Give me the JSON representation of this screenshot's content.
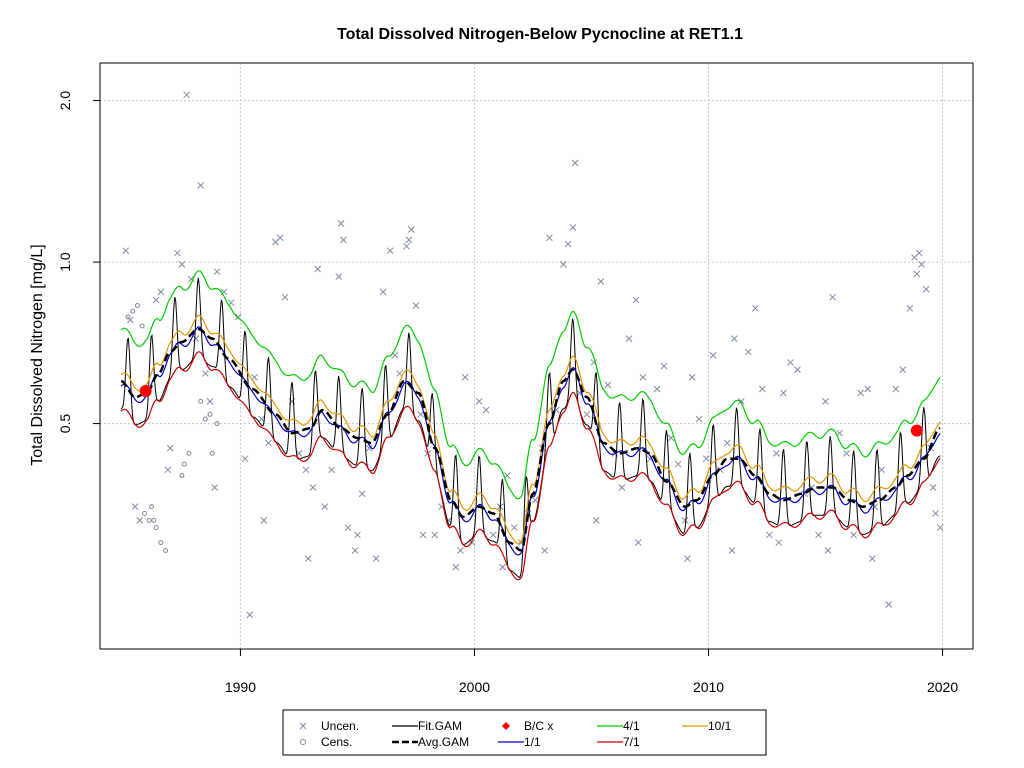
{
  "chart_data": {
    "type": "line",
    "title": "Total Dissolved Nitrogen-Below Pycnocline at RET1.1",
    "xlabel": "",
    "ylabel": "Total Dissolved Nitrogen [mg/L]",
    "y_scale": "log",
    "xlim": [
      1984.0,
      2021.3
    ],
    "ylim": [
      0.19,
      2.35
    ],
    "x_ticks": [
      1990,
      2000,
      2010,
      2020
    ],
    "x_tick_labels": [
      "1990",
      "2000",
      "2010",
      "2020"
    ],
    "y_ticks": [
      0.5,
      1.0,
      2.0
    ],
    "y_tick_labels": [
      "0.5",
      "1.0",
      "2.0"
    ],
    "grid": true,
    "legend_position": "bottom",
    "legend": [
      {
        "key": "uncen",
        "label": "Uncen.",
        "symbol": "x",
        "color": "#7f8ca6"
      },
      {
        "key": "cens",
        "label": "Cens.",
        "symbol": "circle",
        "color": "#7f8ca6"
      },
      {
        "key": "fit",
        "label": "Fit.GAM",
        "symbol": "line",
        "color": "#000000"
      },
      {
        "key": "avg",
        "label": "Avg.GAM",
        "symbol": "dashed",
        "color": "#000000"
      },
      {
        "key": "bc",
        "label": "B/C x",
        "symbol": "diamond",
        "color": "#ff0000"
      },
      {
        "key": "s1",
        "label": "1/1",
        "symbol": "line",
        "color": "#0000cc"
      },
      {
        "key": "s4",
        "label": "4/1",
        "symbol": "line",
        "color": "#00cc00"
      },
      {
        "key": "s7",
        "label": "7/1",
        "symbol": "line",
        "color": "#cc0000"
      },
      {
        "key": "s10",
        "label": "10/1",
        "symbol": "line",
        "color": "#e69500"
      }
    ],
    "avg_gam": {
      "x": [
        1984.9,
        1985.5,
        1986.0,
        1986.5,
        1987.0,
        1987.5,
        1988.2,
        1988.8,
        1989.5,
        1990.5,
        1991.5,
        1992.2,
        1993.0,
        1993.5,
        1994.3,
        1995.0,
        1995.6,
        1996.3,
        1997.0,
        1997.6,
        1998.3,
        1999.0,
        1999.5,
        2000.2,
        2000.8,
        2001.5,
        2002.0,
        2002.5,
        2003.2,
        2003.8,
        2004.2,
        2004.8,
        2005.5,
        2006.2,
        2007.0,
        2007.5,
        2008.2,
        2009.0,
        2009.5,
        2010.2,
        2010.8,
        2011.3,
        2012.0,
        2012.6,
        2013.2,
        2014.0,
        2014.6,
        2015.3,
        2016.0,
        2016.6,
        2017.3,
        2018.0,
        2018.5,
        2019.2,
        2019.9
      ],
      "values": [
        0.6,
        0.56,
        0.57,
        0.62,
        0.68,
        0.71,
        0.75,
        0.72,
        0.66,
        0.58,
        0.52,
        0.48,
        0.49,
        0.53,
        0.49,
        0.47,
        0.46,
        0.52,
        0.6,
        0.57,
        0.45,
        0.36,
        0.335,
        0.35,
        0.34,
        0.3,
        0.29,
        0.37,
        0.5,
        0.6,
        0.63,
        0.56,
        0.46,
        0.44,
        0.45,
        0.44,
        0.39,
        0.35,
        0.36,
        0.4,
        0.43,
        0.43,
        0.4,
        0.37,
        0.36,
        0.37,
        0.38,
        0.38,
        0.36,
        0.35,
        0.36,
        0.38,
        0.4,
        0.43,
        0.49
      ]
    },
    "fit_gam_amplitude": 0.34,
    "series": [
      {
        "name": "4/1",
        "key": "s4",
        "color": "#00cc00",
        "ratio": 1.26
      },
      {
        "name": "10/1",
        "key": "s10",
        "color": "#e69500",
        "ratio": 1.04
      },
      {
        "name": "7/1",
        "key": "s7",
        "color": "#cc0000",
        "ratio": 0.89
      },
      {
        "name": "1/1",
        "key": "s1",
        "color": "#0000cc",
        "ratio": 0.99
      }
    ],
    "bc_points": [
      {
        "x": 1985.95,
        "y": 0.575
      },
      {
        "x": 2018.9,
        "y": 0.485
      }
    ],
    "censored_points": [
      [
        1985.2,
        0.79
      ],
      [
        1985.4,
        0.81
      ],
      [
        1985.6,
        0.83
      ],
      [
        1985.8,
        0.76
      ],
      [
        1986.2,
        0.35
      ],
      [
        1986.3,
        0.33
      ],
      [
        1986.4,
        0.32
      ],
      [
        1986.6,
        0.3
      ],
      [
        1986.8,
        0.29
      ],
      [
        1987.5,
        0.4
      ],
      [
        1987.6,
        0.42
      ],
      [
        1987.8,
        0.44
      ],
      [
        1988.3,
        0.55
      ],
      [
        1988.5,
        0.51
      ],
      [
        1988.7,
        0.52
      ],
      [
        1988.8,
        0.44
      ],
      [
        1989.0,
        0.5
      ],
      [
        1985.9,
        0.34
      ],
      [
        1986.1,
        0.33
      ]
    ],
    "uncensored_points": [
      [
        1985.1,
        1.05
      ],
      [
        1985.3,
        0.78
      ],
      [
        1985.5,
        0.35
      ],
      [
        1985.7,
        0.33
      ],
      [
        1986.4,
        0.85
      ],
      [
        1986.6,
        0.88
      ],
      [
        1987.0,
        0.45
      ],
      [
        1987.3,
        1.04
      ],
      [
        1987.5,
        0.99
      ],
      [
        1987.7,
        2.05
      ],
      [
        1987.9,
        0.93
      ],
      [
        1988.1,
        0.72
      ],
      [
        1988.3,
        1.39
      ],
      [
        1988.5,
        0.62
      ],
      [
        1988.7,
        0.55
      ],
      [
        1989.0,
        0.96
      ],
      [
        1989.3,
        0.88
      ],
      [
        1989.6,
        0.84
      ],
      [
        1989.9,
        0.79
      ],
      [
        1990.2,
        0.43
      ],
      [
        1990.4,
        0.22
      ],
      [
        1990.6,
        0.61
      ],
      [
        1990.9,
        0.51
      ],
      [
        1991.2,
        0.46
      ],
      [
        1991.5,
        1.09
      ],
      [
        1991.7,
        1.11
      ],
      [
        1991.9,
        0.86
      ],
      [
        1992.2,
        0.55
      ],
      [
        1992.5,
        0.44
      ],
      [
        1992.8,
        0.41
      ],
      [
        1993.1,
        0.38
      ],
      [
        1993.3,
        0.97
      ],
      [
        1993.6,
        0.35
      ],
      [
        1993.9,
        0.41
      ],
      [
        1994.2,
        0.94
      ],
      [
        1994.3,
        1.18
      ],
      [
        1994.4,
        1.1
      ],
      [
        1994.6,
        0.32
      ],
      [
        1994.9,
        0.29
      ],
      [
        1995.2,
        0.37
      ],
      [
        1995.5,
        0.45
      ],
      [
        1995.8,
        0.28
      ],
      [
        1996.1,
        0.88
      ],
      [
        1996.4,
        1.05
      ],
      [
        1996.6,
        0.67
      ],
      [
        1996.8,
        0.62
      ],
      [
        1997.1,
        1.07
      ],
      [
        1997.2,
        1.1
      ],
      [
        1997.3,
        1.15
      ],
      [
        1997.5,
        0.83
      ],
      [
        1997.7,
        0.52
      ],
      [
        1998.0,
        0.44
      ],
      [
        1998.3,
        0.31
      ],
      [
        1998.6,
        0.35
      ],
      [
        1998.9,
        0.33
      ],
      [
        1999.2,
        0.27
      ],
      [
        1999.6,
        0.61
      ],
      [
        1999.9,
        0.3
      ],
      [
        2000.2,
        0.55
      ],
      [
        2000.5,
        0.53
      ],
      [
        2000.8,
        0.31
      ],
      [
        2001.1,
        0.35
      ],
      [
        2001.4,
        0.4
      ],
      [
        2001.7,
        0.32
      ],
      [
        2002.0,
        0.3
      ],
      [
        2002.3,
        0.34
      ],
      [
        2002.6,
        0.36
      ],
      [
        2002.9,
        0.45
      ],
      [
        2003.2,
        1.11
      ],
      [
        2003.5,
        0.53
      ],
      [
        2003.8,
        0.99
      ],
      [
        2004.0,
        1.08
      ],
      [
        2004.2,
        1.16
      ],
      [
        2004.3,
        1.53
      ],
      [
        2004.5,
        0.57
      ],
      [
        2004.8,
        0.52
      ],
      [
        2005.1,
        0.65
      ],
      [
        2005.4,
        0.92
      ],
      [
        2005.7,
        0.59
      ],
      [
        2006.0,
        0.44
      ],
      [
        2006.3,
        0.38
      ],
      [
        2006.6,
        0.72
      ],
      [
        2006.9,
        0.85
      ],
      [
        2007.2,
        0.61
      ],
      [
        2007.5,
        0.43
      ],
      [
        2007.8,
        0.58
      ],
      [
        2008.1,
        0.64
      ],
      [
        2008.4,
        0.47
      ],
      [
        2008.7,
        0.42
      ],
      [
        2009.0,
        0.33
      ],
      [
        2009.3,
        0.61
      ],
      [
        2009.6,
        0.51
      ],
      [
        2009.9,
        0.43
      ],
      [
        2010.2,
        0.67
      ],
      [
        2010.5,
        0.41
      ],
      [
        2010.8,
        0.46
      ],
      [
        2011.1,
        0.72
      ],
      [
        2011.4,
        0.55
      ],
      [
        2011.7,
        0.68
      ],
      [
        2012.0,
        0.82
      ],
      [
        2012.3,
        0.58
      ],
      [
        2012.6,
        0.31
      ],
      [
        2012.9,
        0.44
      ],
      [
        2013.2,
        0.57
      ],
      [
        2013.5,
        0.65
      ],
      [
        2013.8,
        0.63
      ],
      [
        2014.1,
        0.37
      ],
      [
        2014.4,
        0.38
      ],
      [
        2014.7,
        0.31
      ],
      [
        2015.0,
        0.55
      ],
      [
        2015.3,
        0.86
      ],
      [
        2015.6,
        0.48
      ],
      [
        2015.9,
        0.44
      ],
      [
        2016.2,
        0.31
      ],
      [
        2016.5,
        0.57
      ],
      [
        2016.8,
        0.58
      ],
      [
        2017.1,
        0.35
      ],
      [
        2017.4,
        0.41
      ],
      [
        2017.7,
        0.23
      ],
      [
        2018.0,
        0.58
      ],
      [
        2018.3,
        0.63
      ],
      [
        2018.6,
        0.82
      ],
      [
        2018.8,
        1.02
      ],
      [
        2018.9,
        0.95
      ],
      [
        2019.0,
        1.04
      ],
      [
        2019.1,
        0.99
      ],
      [
        2019.3,
        0.89
      ],
      [
        2019.5,
        0.45
      ],
      [
        2019.7,
        0.34
      ],
      [
        2019.9,
        0.32
      ],
      [
        1986.9,
        0.41
      ],
      [
        1988.9,
        0.38
      ],
      [
        1991.0,
        0.33
      ],
      [
        1992.9,
        0.28
      ],
      [
        1995.0,
        0.31
      ],
      [
        1997.8,
        0.31
      ],
      [
        1999.4,
        0.29
      ],
      [
        2001.2,
        0.27
      ],
      [
        2003.0,
        0.29
      ],
      [
        2005.2,
        0.33
      ],
      [
        2007.0,
        0.3
      ],
      [
        2009.1,
        0.28
      ],
      [
        2011.0,
        0.29
      ],
      [
        2013.0,
        0.3
      ],
      [
        2015.1,
        0.29
      ],
      [
        2017.0,
        0.28
      ],
      [
        2019.6,
        0.38
      ]
    ]
  }
}
